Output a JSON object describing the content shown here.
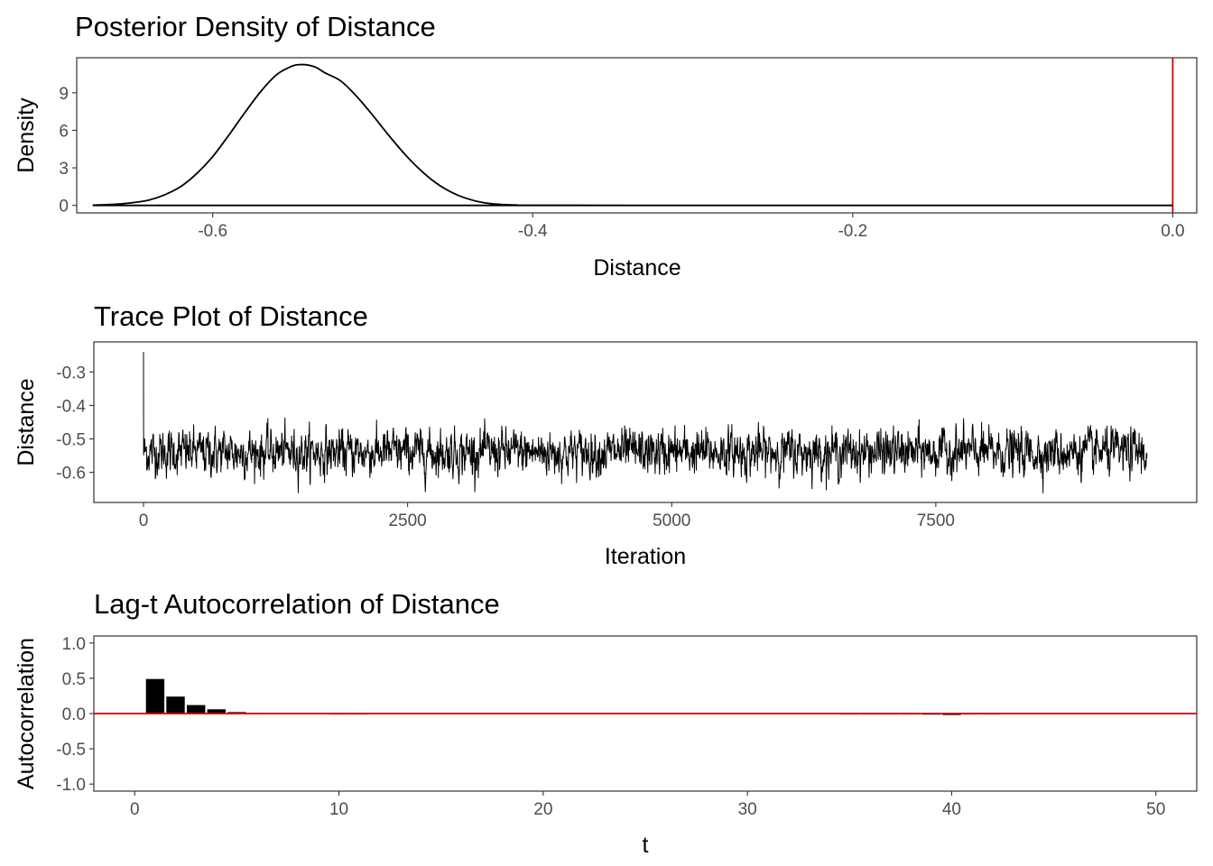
{
  "chart_data": [
    {
      "type": "line",
      "title": "Posterior Density of Distance",
      "xlabel": "Distance",
      "ylabel": "Density",
      "xlim": [
        -0.685,
        0.015
      ],
      "ylim": [
        -0.6,
        11.8
      ],
      "xticks": [
        -0.6,
        -0.4,
        -0.2,
        0.0
      ],
      "xtick_labels": [
        "-0.6",
        "-0.4",
        "-0.2",
        "0.0"
      ],
      "yticks": [
        0,
        3,
        6,
        9
      ],
      "ytick_labels": [
        "0",
        "3",
        "6",
        "9"
      ],
      "series": [
        {
          "x": [
            -0.675,
            -0.66,
            -0.65,
            -0.64,
            -0.63,
            -0.62,
            -0.61,
            -0.6,
            -0.59,
            -0.58,
            -0.57,
            -0.56,
            -0.55,
            -0.545,
            -0.54,
            -0.535,
            -0.53,
            -0.52,
            -0.51,
            -0.5,
            -0.49,
            -0.48,
            -0.47,
            -0.46,
            -0.45,
            -0.44,
            -0.43,
            -0.42,
            -0.41,
            -0.4,
            -0.3,
            -0.2,
            -0.1,
            0.0
          ],
          "y": [
            0.02,
            0.1,
            0.22,
            0.42,
            0.85,
            1.5,
            2.55,
            3.9,
            5.6,
            7.4,
            9.1,
            10.45,
            11.15,
            11.25,
            11.2,
            11.0,
            10.6,
            9.95,
            8.7,
            7.2,
            5.6,
            4.1,
            2.8,
            1.75,
            1.0,
            0.5,
            0.2,
            0.08,
            0.03,
            0.01,
            0.0,
            0.0,
            0.0,
            0.0
          ]
        }
      ],
      "reference_line": {
        "orientation": "vertical",
        "x": 0.0,
        "color": "#cc0000"
      },
      "line_color": "#000000",
      "grid": false
    },
    {
      "type": "line",
      "title": "Trace Plot of Distance",
      "xlabel": "Iteration",
      "ylabel": "Distance",
      "xlim": [
        -470,
        9970
      ],
      "ylim": [
        -0.69,
        -0.21
      ],
      "xticks": [
        0,
        2500,
        5000,
        7500
      ],
      "xtick_labels": [
        "0",
        "2500",
        "5000",
        "7500"
      ],
      "yticks": [
        -0.6,
        -0.5,
        -0.4,
        -0.3
      ],
      "ytick_labels": [
        "-0.6",
        "-0.5",
        "-0.4",
        "-0.3"
      ],
      "iterations": 9500,
      "mean": -0.54,
      "sd": 0.03,
      "range": [
        -0.67,
        -0.43
      ],
      "first_value": -0.24,
      "line_color": "#000000",
      "grid": false
    },
    {
      "type": "bar",
      "title": "Lag-t Autocorrelation of Distance",
      "xlabel": "t",
      "ylabel": "Autocorrelation",
      "xlim": [
        -2.0,
        52.0
      ],
      "ylim": [
        -1.1,
        1.1
      ],
      "xticks": [
        0,
        10,
        20,
        30,
        40,
        50
      ],
      "xtick_labels": [
        "0",
        "10",
        "20",
        "30",
        "40",
        "50"
      ],
      "yticks": [
        -1.0,
        -0.5,
        0.0,
        0.5,
        1.0
      ],
      "ytick_labels": [
        "-1.0",
        "-0.5",
        "0.0",
        "0.5",
        "1.0"
      ],
      "x": [
        1,
        2,
        3,
        4,
        5,
        6,
        7,
        8,
        9,
        10,
        11,
        12,
        13,
        14,
        15,
        16,
        17,
        18,
        19,
        20,
        21,
        22,
        23,
        24,
        25,
        26,
        27,
        28,
        29,
        30,
        31,
        32,
        33,
        34,
        35,
        36,
        37,
        38,
        39,
        40,
        41,
        42,
        43,
        44,
        45,
        46,
        47,
        48,
        49,
        50
      ],
      "values": [
        0.49,
        0.24,
        0.12,
        0.06,
        0.02,
        0.005,
        0.0,
        0.0,
        0.0,
        -0.01,
        -0.01,
        0.0,
        0.0,
        0.0,
        0.0,
        0.0,
        0.0,
        0.0,
        0.0,
        0.0,
        0.0,
        0.0,
        0.0,
        0.0,
        0.0,
        0.0,
        0.0,
        0.0,
        0.0,
        0.0,
        0.0,
        0.0,
        0.0,
        0.0,
        -0.01,
        -0.01,
        -0.01,
        -0.01,
        -0.015,
        -0.02,
        -0.01,
        -0.01,
        0.0,
        0.0,
        0.0,
        0.0,
        0.0,
        0.0,
        0.0,
        0.0
      ],
      "reference_line": {
        "orientation": "horizontal",
        "y": 0.0,
        "color": "#cc0000"
      },
      "bar_color": "#000000",
      "grid": false
    }
  ]
}
